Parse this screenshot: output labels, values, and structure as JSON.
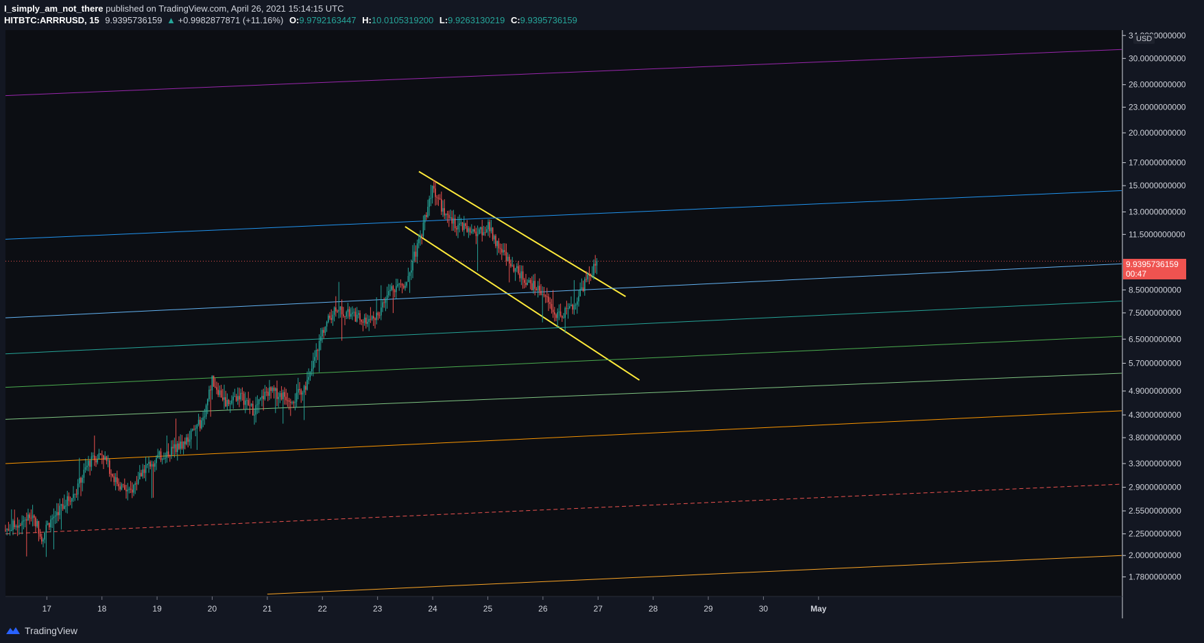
{
  "header": {
    "author": "I_simply_am_not_there",
    "published_text": "published on TradingView.com, April 26, 2021 15:14:15 UTC",
    "symbol": "HITBTC:ARRRUSD, 15",
    "last": "9.9395736159",
    "change": "+0.9982877871 (+11.16%)",
    "change_arrow": "▲",
    "o_label": "O:",
    "o_value": "9.9792163447",
    "h_label": "H:",
    "h_value": "10.0105319200",
    "l_label": "L:",
    "l_value": "9.9263130219",
    "c_label": "C:",
    "c_value": "9.9395736159"
  },
  "axis": {
    "currency": "USD",
    "price_label": "9.9395736159",
    "countdown": "00:47"
  },
  "footer": {
    "brand": "TradingView",
    "brand_icon": "tradingview-logo-icon"
  },
  "colors": {
    "background": "#131722",
    "candle_up": "#26a69a",
    "candle_down": "#ef5350",
    "trend_channel": "#ffeb3b",
    "price_line": "#ef5350"
  },
  "chart_data": {
    "type": "candlestick",
    "symbol": "HITBTC:ARRRUSD",
    "interval": "15",
    "y_scale": "log",
    "ylim": [
      1.6,
      35
    ],
    "xlim": [
      "2021-04-16T06:00",
      "2021-05-06T12:00"
    ],
    "x_ticks": [
      {
        "t": "2021-04-17",
        "label": "17"
      },
      {
        "t": "2021-04-18",
        "label": "18"
      },
      {
        "t": "2021-04-19",
        "label": "19"
      },
      {
        "t": "2021-04-20",
        "label": "20"
      },
      {
        "t": "2021-04-21",
        "label": "21"
      },
      {
        "t": "2021-04-22",
        "label": "22"
      },
      {
        "t": "2021-04-23",
        "label": "23"
      },
      {
        "t": "2021-04-24",
        "label": "24"
      },
      {
        "t": "2021-04-25",
        "label": "25"
      },
      {
        "t": "2021-04-26",
        "label": "26"
      },
      {
        "t": "2021-04-27",
        "label": "27"
      },
      {
        "t": "2021-04-28",
        "label": "28"
      },
      {
        "t": "2021-04-29",
        "label": "29"
      },
      {
        "t": "2021-04-30",
        "label": "30"
      },
      {
        "t": "2021-05-01",
        "label": "May"
      }
    ],
    "y_ticks": [
      {
        "v": 34.0,
        "label": "34.0000000000"
      },
      {
        "v": 30.0,
        "label": "30.0000000000"
      },
      {
        "v": 26.0,
        "label": "26.0000000000"
      },
      {
        "v": 23.0,
        "label": "23.0000000000"
      },
      {
        "v": 20.0,
        "label": "20.0000000000"
      },
      {
        "v": 17.0,
        "label": "17.0000000000"
      },
      {
        "v": 15.0,
        "label": "15.0000000000"
      },
      {
        "v": 13.0,
        "label": "13.0000000000"
      },
      {
        "v": 11.5,
        "label": "11.5000000000"
      },
      {
        "v": 8.5,
        "label": "8.5000000000"
      },
      {
        "v": 7.5,
        "label": "7.5000000000"
      },
      {
        "v": 6.5,
        "label": "6.5000000000"
      },
      {
        "v": 5.7,
        "label": "5.7000000000"
      },
      {
        "v": 4.9,
        "label": "4.9000000000"
      },
      {
        "v": 4.3,
        "label": "4.3000000000"
      },
      {
        "v": 3.8,
        "label": "3.8000000000"
      },
      {
        "v": 3.3,
        "label": "3.3000000000"
      },
      {
        "v": 2.9,
        "label": "2.9000000000"
      },
      {
        "v": 2.55,
        "label": "2.5500000000"
      },
      {
        "v": 2.25,
        "label": "2.2500000000"
      },
      {
        "v": 2.0,
        "label": "2.0000000000"
      },
      {
        "v": 1.78,
        "label": "1.7800000000"
      }
    ],
    "last_price": 9.9395736159,
    "price_path": [
      {
        "t": "2021-04-16T06:00",
        "p": 2.3
      },
      {
        "t": "2021-04-16T12:00",
        "p": 2.4
      },
      {
        "t": "2021-04-16T18:00",
        "p": 2.5
      },
      {
        "t": "2021-04-16T22:00",
        "p": 2.2
      },
      {
        "t": "2021-04-17T00:00",
        "p": 2.35
      },
      {
        "t": "2021-04-17T06:00",
        "p": 2.6
      },
      {
        "t": "2021-04-17T12:00",
        "p": 2.8
      },
      {
        "t": "2021-04-17T18:00",
        "p": 3.3
      },
      {
        "t": "2021-04-18T00:00",
        "p": 3.5
      },
      {
        "t": "2021-04-18T06:00",
        "p": 3.0
      },
      {
        "t": "2021-04-18T12:00",
        "p": 2.8
      },
      {
        "t": "2021-04-18T18:00",
        "p": 3.2
      },
      {
        "t": "2021-04-19T00:00",
        "p": 3.4
      },
      {
        "t": "2021-04-19T12:00",
        "p": 3.7
      },
      {
        "t": "2021-04-19T20:00",
        "p": 4.2
      },
      {
        "t": "2021-04-20T00:00",
        "p": 5.2
      },
      {
        "t": "2021-04-20T06:00",
        "p": 4.6
      },
      {
        "t": "2021-04-20T12:00",
        "p": 4.8
      },
      {
        "t": "2021-04-20T18:00",
        "p": 4.4
      },
      {
        "t": "2021-04-21T00:00",
        "p": 4.9
      },
      {
        "t": "2021-04-21T06:00",
        "p": 4.8
      },
      {
        "t": "2021-04-21T12:00",
        "p": 4.7
      },
      {
        "t": "2021-04-21T18:00",
        "p": 5.2
      },
      {
        "t": "2021-04-22T00:00",
        "p": 6.8
      },
      {
        "t": "2021-04-22T06:00",
        "p": 7.8
      },
      {
        "t": "2021-04-22T12:00",
        "p": 7.4
      },
      {
        "t": "2021-04-22T18:00",
        "p": 7.2
      },
      {
        "t": "2021-04-23T00:00",
        "p": 7.4
      },
      {
        "t": "2021-04-23T06:00",
        "p": 8.6
      },
      {
        "t": "2021-04-23T12:00",
        "p": 8.8
      },
      {
        "t": "2021-04-23T18:00",
        "p": 11.0
      },
      {
        "t": "2021-04-24T00:00",
        "p": 15.0
      },
      {
        "t": "2021-04-24T06:00",
        "p": 12.5
      },
      {
        "t": "2021-04-24T12:00",
        "p": 12.0
      },
      {
        "t": "2021-04-24T18:00",
        "p": 11.5
      },
      {
        "t": "2021-04-25T00:00",
        "p": 12.0
      },
      {
        "t": "2021-04-25T06:00",
        "p": 10.5
      },
      {
        "t": "2021-04-25T12:00",
        "p": 9.5
      },
      {
        "t": "2021-04-25T18:00",
        "p": 8.8
      },
      {
        "t": "2021-04-26T00:00",
        "p": 8.4
      },
      {
        "t": "2021-04-26T06:00",
        "p": 7.3
      },
      {
        "t": "2021-04-26T12:00",
        "p": 7.6
      },
      {
        "t": "2021-04-26T18:00",
        "p": 8.8
      },
      {
        "t": "2021-04-27T00:00",
        "p": 9.9395736159
      }
    ],
    "trendlines": [
      {
        "name": "channel-top",
        "color": "#ffeb3b",
        "width": 2,
        "from": {
          "t": "2021-04-23T18:00",
          "p": 16.2
        },
        "to": {
          "t": "2021-04-27T12:00",
          "p": 8.2
        }
      },
      {
        "name": "channel-bottom",
        "color": "#ffeb3b",
        "width": 2,
        "from": {
          "t": "2021-04-23T12:00",
          "p": 12.0
        },
        "to": {
          "t": "2021-04-27T18:00",
          "p": 5.2
        }
      },
      {
        "name": "parallel-purple",
        "color": "#9c27b0",
        "width": 1,
        "from": {
          "t": "2021-04-16T06:00",
          "p": 24.5
        },
        "to": {
          "t": "2021-05-06T12:00",
          "p": 31.5
        }
      },
      {
        "name": "parallel-blue-upper",
        "color": "#2196f3",
        "width": 1,
        "from": {
          "t": "2021-04-16T06:00",
          "p": 11.2
        },
        "to": {
          "t": "2021-05-06T12:00",
          "p": 14.6
        }
      },
      {
        "name": "parallel-blue-lower",
        "color": "#64b5f6",
        "width": 1,
        "from": {
          "t": "2021-04-16T06:00",
          "p": 7.3
        },
        "to": {
          "t": "2021-05-06T12:00",
          "p": 9.8
        }
      },
      {
        "name": "parallel-teal",
        "color": "#26a69a",
        "width": 1,
        "from": {
          "t": "2021-04-16T06:00",
          "p": 6.0
        },
        "to": {
          "t": "2021-05-06T12:00",
          "p": 8.0
        }
      },
      {
        "name": "parallel-green",
        "color": "#4caf50",
        "width": 1,
        "from": {
          "t": "2021-04-16T06:00",
          "p": 5.0
        },
        "to": {
          "t": "2021-05-06T12:00",
          "p": 6.6
        }
      },
      {
        "name": "parallel-lightgreen",
        "color": "#81c784",
        "width": 1,
        "from": {
          "t": "2021-04-16T06:00",
          "p": 4.2
        },
        "to": {
          "t": "2021-05-06T12:00",
          "p": 5.4
        }
      },
      {
        "name": "parallel-orange",
        "color": "#ff9800",
        "width": 1,
        "from": {
          "t": "2021-04-16T06:00",
          "p": 3.3
        },
        "to": {
          "t": "2021-05-06T12:00",
          "p": 4.4
        }
      },
      {
        "name": "parallel-red-dashed",
        "color": "#ef5350",
        "width": 1,
        "dashed": true,
        "from": {
          "t": "2021-04-16T06:00",
          "p": 2.25
        },
        "to": {
          "t": "2021-05-06T12:00",
          "p": 2.95
        }
      },
      {
        "name": "parallel-orange-bottom",
        "color": "#ffa726",
        "width": 1,
        "from": {
          "t": "2021-04-21T00:00",
          "p": 1.62
        },
        "to": {
          "t": "2021-05-06T12:00",
          "p": 2.0
        }
      }
    ]
  }
}
